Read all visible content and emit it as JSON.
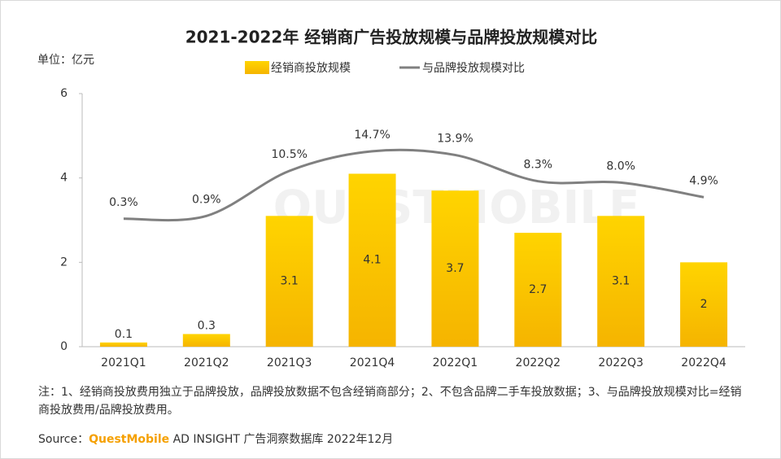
{
  "chart_data": {
    "type": "bar_line",
    "title": "2021-2022年 经销商广告投放规模与品牌投放规模对比",
    "unit_label": "单位：亿元",
    "watermark": "QUESTMOBILE",
    "categories": [
      "2021Q1",
      "2021Q2",
      "2021Q3",
      "2021Q4",
      "2022Q1",
      "2022Q2",
      "2022Q3",
      "2022Q4"
    ],
    "series": [
      {
        "name": "经销商投放规模",
        "color": "#ffc000",
        "values": [
          0.1,
          0.3,
          3.1,
          4.1,
          3.7,
          2.7,
          3.1,
          2.0
        ]
      },
      {
        "name": "与品牌投放规模对比",
        "color": "#808080",
        "axis": "y2",
        "values": [
          0.3,
          0.9,
          10.5,
          14.7,
          13.9,
          8.3,
          8.0,
          4.9
        ],
        "value_labels": [
          "0.3%",
          "0.9%",
          "10.5%",
          "14.7%",
          "13.9%",
          "8.3%",
          "8.0%",
          "4.9%"
        ]
      }
    ],
    "ylim": [
      0,
      6
    ],
    "yticks": [
      0,
      2,
      4,
      6
    ],
    "y2lim": [
      -27,
      27
    ],
    "note": "注：1、经销商投放费用独立于品牌投放，品牌投放数据不包含经销商部分；2、不包含品牌二手车投放数据；3、与品牌投放规模对比=经销商投放费用/品牌投放费用。",
    "source_prefix": "Source：",
    "source_brand": "QuestMobile",
    "source_rest": " AD INSIGHT 广告洞察数据库 2022年12月"
  }
}
